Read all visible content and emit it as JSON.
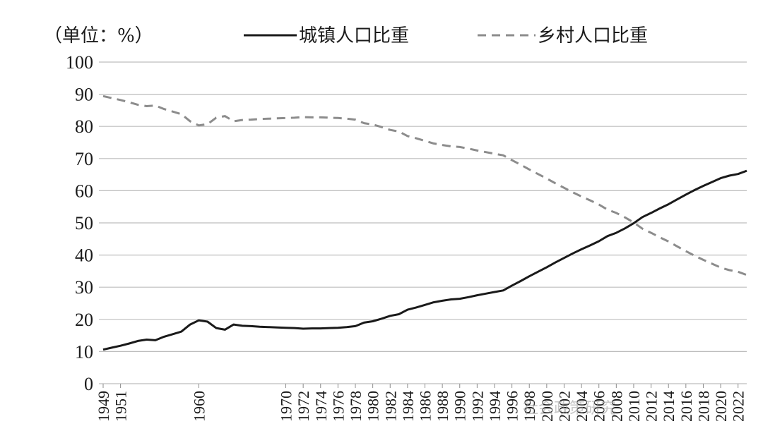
{
  "chart_data": {
    "type": "line",
    "unit_label": "（单位：%）",
    "ylim": [
      0,
      100
    ],
    "yticks": [
      0,
      10,
      20,
      30,
      40,
      50,
      60,
      70,
      80,
      90,
      100
    ],
    "grid": true,
    "legend_position": "top",
    "x_tick_labels": [
      "1949",
      "1951",
      "1960",
      "1970",
      "1972",
      "1974",
      "1976",
      "1978",
      "1980",
      "1982",
      "1984",
      "1986",
      "1988",
      "1990",
      "1992",
      "1994",
      "1996",
      "1998",
      "2000",
      "2002",
      "2004",
      "2006",
      "2008",
      "2010",
      "2012",
      "2014",
      "2016",
      "2018",
      "2020",
      "2022"
    ],
    "x": [
      "1949",
      "1950",
      "1951",
      "1952",
      "1953",
      "1954",
      "1955",
      "1956",
      "1957",
      "1958",
      "1959",
      "1960",
      "1961",
      "1962",
      "1963",
      "1964",
      "1965",
      "1966",
      "1967",
      "1968",
      "1969",
      "1970",
      "1971",
      "1972",
      "1973",
      "1974",
      "1975",
      "1976",
      "1977",
      "1978",
      "1979",
      "1980",
      "1981",
      "1982",
      "1983",
      "1984",
      "1985",
      "1986",
      "1987",
      "1988",
      "1989",
      "1990",
      "1991",
      "1992",
      "1993",
      "1994",
      "1995",
      "1996",
      "1997",
      "1998",
      "1999",
      "2000",
      "2001",
      "2002",
      "2003",
      "2004",
      "2005",
      "2006",
      "2007",
      "2008",
      "2009",
      "2010",
      "2011",
      "2012",
      "2013",
      "2014",
      "2015",
      "2016",
      "2017",
      "2018",
      "2019",
      "2020",
      "2021",
      "2022",
      "2023"
    ],
    "series": [
      {
        "name": "城镇人口比重",
        "style": "solid",
        "color": "#1a1a1a",
        "values": [
          10.6,
          11.2,
          11.8,
          12.5,
          13.3,
          13.7,
          13.5,
          14.6,
          15.4,
          16.2,
          18.4,
          19.7,
          19.3,
          17.3,
          16.8,
          18.4,
          18.0,
          17.9,
          17.7,
          17.6,
          17.5,
          17.4,
          17.3,
          17.1,
          17.2,
          17.2,
          17.3,
          17.4,
          17.6,
          17.9,
          19.0,
          19.4,
          20.2,
          21.1,
          21.6,
          23.0,
          23.7,
          24.5,
          25.3,
          25.8,
          26.2,
          26.4,
          26.9,
          27.5,
          28.0,
          28.5,
          29.0,
          30.5,
          31.9,
          33.4,
          34.8,
          36.2,
          37.7,
          39.1,
          40.5,
          41.8,
          43.0,
          44.3,
          45.9,
          46.9,
          48.3,
          49.9,
          51.8,
          53.1,
          54.5,
          55.8,
          57.3,
          58.8,
          60.2,
          61.5,
          62.7,
          63.9,
          64.7,
          65.2,
          66.2
        ]
      },
      {
        "name": "乡村人口比重",
        "style": "dashed",
        "color": "#8c8c8c",
        "values": [
          89.4,
          88.8,
          88.2,
          87.5,
          86.7,
          86.3,
          86.5,
          85.4,
          84.6,
          83.8,
          81.6,
          80.3,
          80.7,
          82.7,
          83.2,
          81.6,
          82.0,
          82.1,
          82.3,
          82.4,
          82.5,
          82.6,
          82.7,
          82.9,
          82.8,
          82.8,
          82.7,
          82.6,
          82.4,
          82.1,
          81.0,
          80.6,
          79.8,
          78.9,
          78.4,
          77.0,
          76.3,
          75.5,
          74.7,
          74.2,
          73.8,
          73.6,
          73.1,
          72.5,
          72.0,
          71.5,
          71.0,
          69.5,
          68.1,
          66.6,
          65.2,
          63.8,
          62.3,
          60.9,
          59.5,
          58.2,
          57.0,
          55.7,
          54.1,
          53.1,
          51.7,
          50.1,
          48.2,
          46.9,
          45.5,
          44.2,
          42.7,
          41.2,
          39.8,
          38.5,
          37.3,
          36.1,
          35.3,
          34.8,
          33.8
        ]
      }
    ]
  },
  "watermark": "社会政策研究"
}
